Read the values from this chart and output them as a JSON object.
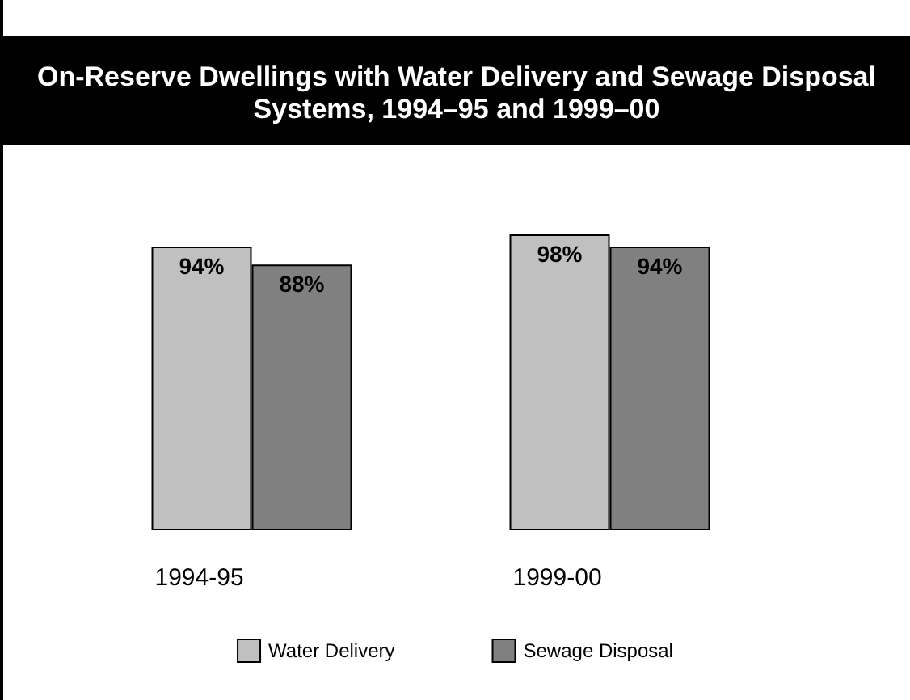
{
  "chart_data": {
    "type": "bar",
    "title": "On-Reserve Dwellings with Water Delivery and Sewage Disposal Systems, 1994–95 and 1999–00",
    "categories": [
      "1994-95",
      "1999-00"
    ],
    "series": [
      {
        "name": "Water Delivery",
        "color": "#c0c0c0",
        "values": [
          94,
          98
        ],
        "value_labels": [
          "94%",
          "98%"
        ]
      },
      {
        "name": "Sewage Disposal",
        "color": "#808080",
        "values": [
          88,
          94
        ],
        "value_labels": [
          "88%",
          "94%"
        ]
      }
    ],
    "legend": "bottom"
  }
}
